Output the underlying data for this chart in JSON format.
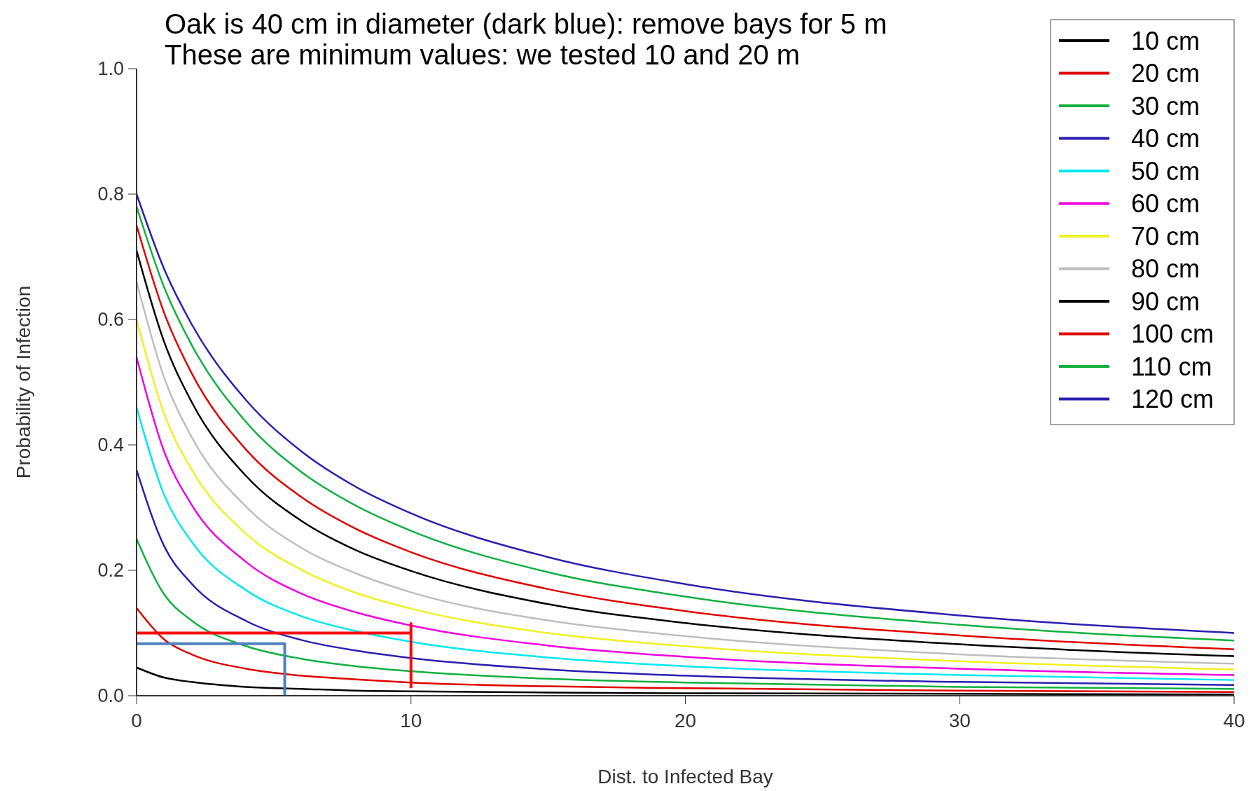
{
  "chart_data": {
    "type": "line",
    "xlabel": "Dist. to Infected Bay",
    "ylabel": "Probability of Infection",
    "annotations": [
      "Oak is 40 cm in diameter (dark blue): remove bays for 5 m",
      "These are minimum values: we tested 10 and 20 m"
    ],
    "x": [
      0,
      1,
      2,
      4,
      6,
      8,
      10,
      15,
      20,
      30,
      40
    ],
    "xlim": [
      0,
      40
    ],
    "xticks": [
      0,
      10,
      20,
      30,
      40
    ],
    "ylim": [
      0,
      1
    ],
    "yticks": [
      {
        "value": 0,
        "label": "0.0"
      },
      {
        "value": 0.2,
        "label": "0.2"
      },
      {
        "value": 0.4,
        "label": "0.4"
      },
      {
        "value": 0.6,
        "label": "0.6"
      },
      {
        "value": 0.8,
        "label": "0.8"
      },
      {
        "value": 1,
        "label": "1.0"
      }
    ],
    "legend": "top right",
    "grid": false,
    "series": [
      {
        "name": "10 cm",
        "color": "#000000",
        "values": [
          0.045,
          0.029,
          0.022,
          0.014,
          0.011,
          0.008,
          0.007,
          0.005,
          0.004,
          0.003,
          0.002
        ]
      },
      {
        "name": "20 cm",
        "color": "#e00000",
        "values": [
          0.14,
          0.09,
          0.066,
          0.043,
          0.032,
          0.026,
          0.021,
          0.015,
          0.012,
          0.008,
          0.006
        ]
      },
      {
        "name": "30 cm",
        "color": "#10b040",
        "values": [
          0.25,
          0.162,
          0.12,
          0.079,
          0.059,
          0.047,
          0.039,
          0.027,
          0.021,
          0.014,
          0.011
        ]
      },
      {
        "name": "40 cm",
        "color": "#2a1fb0",
        "values": [
          0.36,
          0.239,
          0.179,
          0.119,
          0.089,
          0.072,
          0.06,
          0.042,
          0.032,
          0.022,
          0.017
        ]
      },
      {
        "name": "50 cm",
        "color": "#00e8f0",
        "values": [
          0.46,
          0.321,
          0.246,
          0.168,
          0.127,
          0.103,
          0.086,
          0.061,
          0.047,
          0.033,
          0.025
        ]
      },
      {
        "name": "60 cm",
        "color": "#f000e0",
        "values": [
          0.54,
          0.39,
          0.305,
          0.213,
          0.163,
          0.133,
          0.112,
          0.08,
          0.062,
          0.043,
          0.033
        ]
      },
      {
        "name": "70 cm",
        "color": "#f0f020",
        "values": [
          0.6,
          0.45,
          0.361,
          0.258,
          0.201,
          0.164,
          0.139,
          0.1,
          0.079,
          0.055,
          0.042
        ]
      },
      {
        "name": "80 cm",
        "color": "#bebebe",
        "values": [
          0.66,
          0.508,
          0.413,
          0.301,
          0.236,
          0.195,
          0.165,
          0.12,
          0.095,
          0.066,
          0.051
        ]
      },
      {
        "name": "90 cm",
        "color": "#000000",
        "values": [
          0.71,
          0.565,
          0.469,
          0.35,
          0.279,
          0.232,
          0.199,
          0.146,
          0.116,
          0.082,
          0.063
        ]
      },
      {
        "name": "100 cm",
        "color": "#e00000",
        "values": [
          0.75,
          0.611,
          0.515,
          0.392,
          0.317,
          0.266,
          0.229,
          0.17,
          0.135,
          0.096,
          0.074
        ]
      },
      {
        "name": "110 cm",
        "color": "#10b040",
        "values": [
          0.78,
          0.652,
          0.56,
          0.436,
          0.357,
          0.303,
          0.263,
          0.197,
          0.158,
          0.113,
          0.088
        ]
      },
      {
        "name": "120 cm",
        "color": "#2a1fb0",
        "values": [
          0.8,
          0.681,
          0.593,
          0.471,
          0.39,
          0.333,
          0.291,
          0.221,
          0.178,
          0.128,
          0.1
        ]
      },
      {
        "color": "#ff0000",
        "x": [
          0,
          10,
          10,
          10
        ],
        "values": [
          0.1,
          0.1,
          0.115,
          0.012
        ]
      },
      {
        "color": "#4f81bd",
        "x": [
          0,
          5.4,
          5.4
        ],
        "values": [
          0.083,
          0.083,
          0
        ]
      }
    ]
  }
}
